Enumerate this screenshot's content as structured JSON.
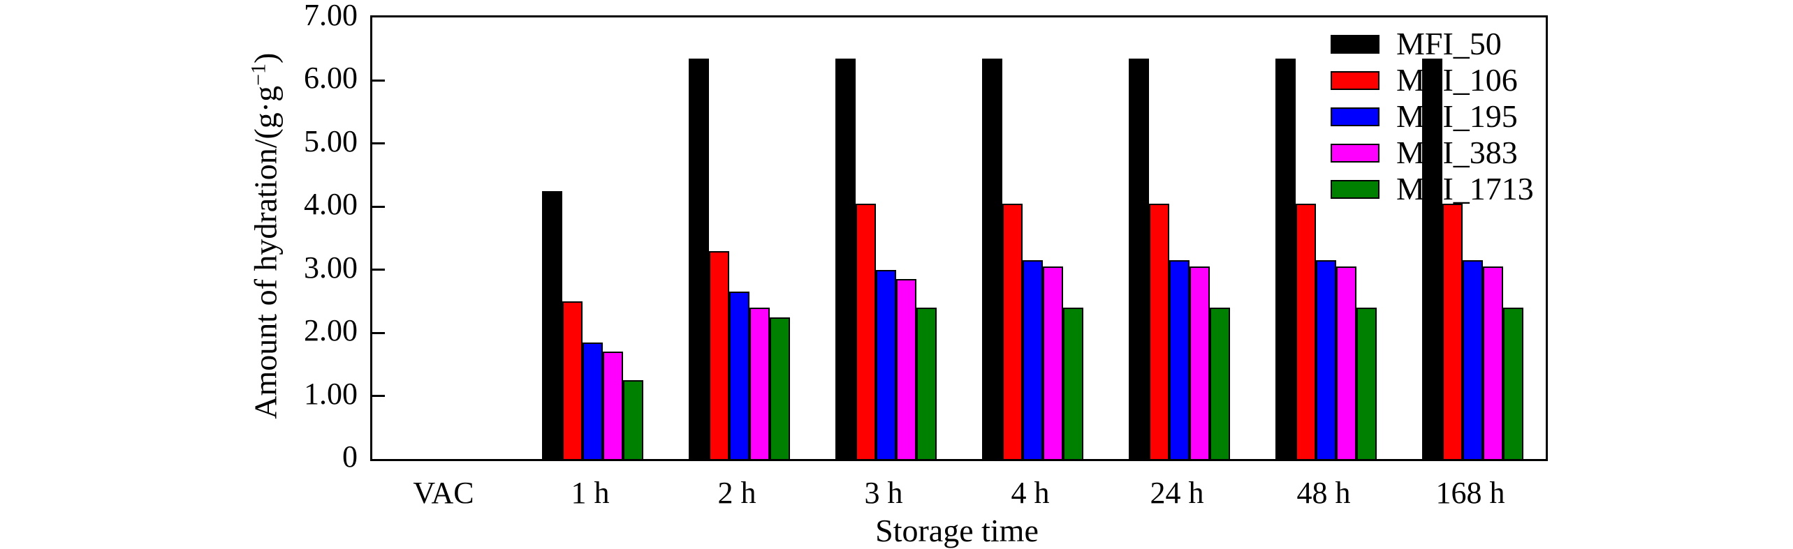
{
  "chart_data": {
    "type": "bar",
    "title": "",
    "xlabel": "Storage time",
    "ylabel": "Amount of hydration/(g·g⁻¹)",
    "ylabel_parts": {
      "prefix": "Amount of hydration/(g·g",
      "sup": "−1",
      "suffix": ")"
    },
    "ylim": [
      0,
      7
    ],
    "yticks": [
      {
        "value": 7,
        "label": "7.00"
      },
      {
        "value": 6,
        "label": "6.00"
      },
      {
        "value": 5,
        "label": "5.00"
      },
      {
        "value": 4,
        "label": "4.00"
      },
      {
        "value": 3,
        "label": "3.00"
      },
      {
        "value": 2,
        "label": "2.00"
      },
      {
        "value": 1,
        "label": "1.00"
      },
      {
        "value": 0,
        "label": "0"
      }
    ],
    "categories": [
      "VAC",
      "1 h",
      "2 h",
      "3 h",
      "4 h",
      "24 h",
      "48 h",
      "168 h"
    ],
    "series": [
      {
        "name": "MFI_50",
        "color": "#000000",
        "values": [
          0,
          4.25,
          6.35,
          6.35,
          6.35,
          6.35,
          6.35,
          6.35
        ]
      },
      {
        "name": "MFI_106",
        "color": "#ff0000",
        "values": [
          0,
          2.5,
          3.3,
          4.05,
          4.05,
          4.05,
          4.05,
          4.05
        ]
      },
      {
        "name": "MFI_195",
        "color": "#0000ff",
        "values": [
          0,
          1.85,
          2.65,
          3.0,
          3.15,
          3.15,
          3.15,
          3.15
        ]
      },
      {
        "name": "MFI_383",
        "color": "#ff00ff",
        "values": [
          0,
          1.7,
          2.4,
          2.85,
          3.05,
          3.05,
          3.05,
          3.05
        ]
      },
      {
        "name": "MFI_1713",
        "color": "#008000",
        "values": [
          0,
          1.25,
          2.25,
          2.4,
          2.4,
          2.4,
          2.4,
          2.4
        ]
      }
    ],
    "legend_position": "top-right",
    "grid": false,
    "bar_outline_color": "#000000",
    "axis_color": "#000000",
    "background_color": "#ffffff"
  }
}
